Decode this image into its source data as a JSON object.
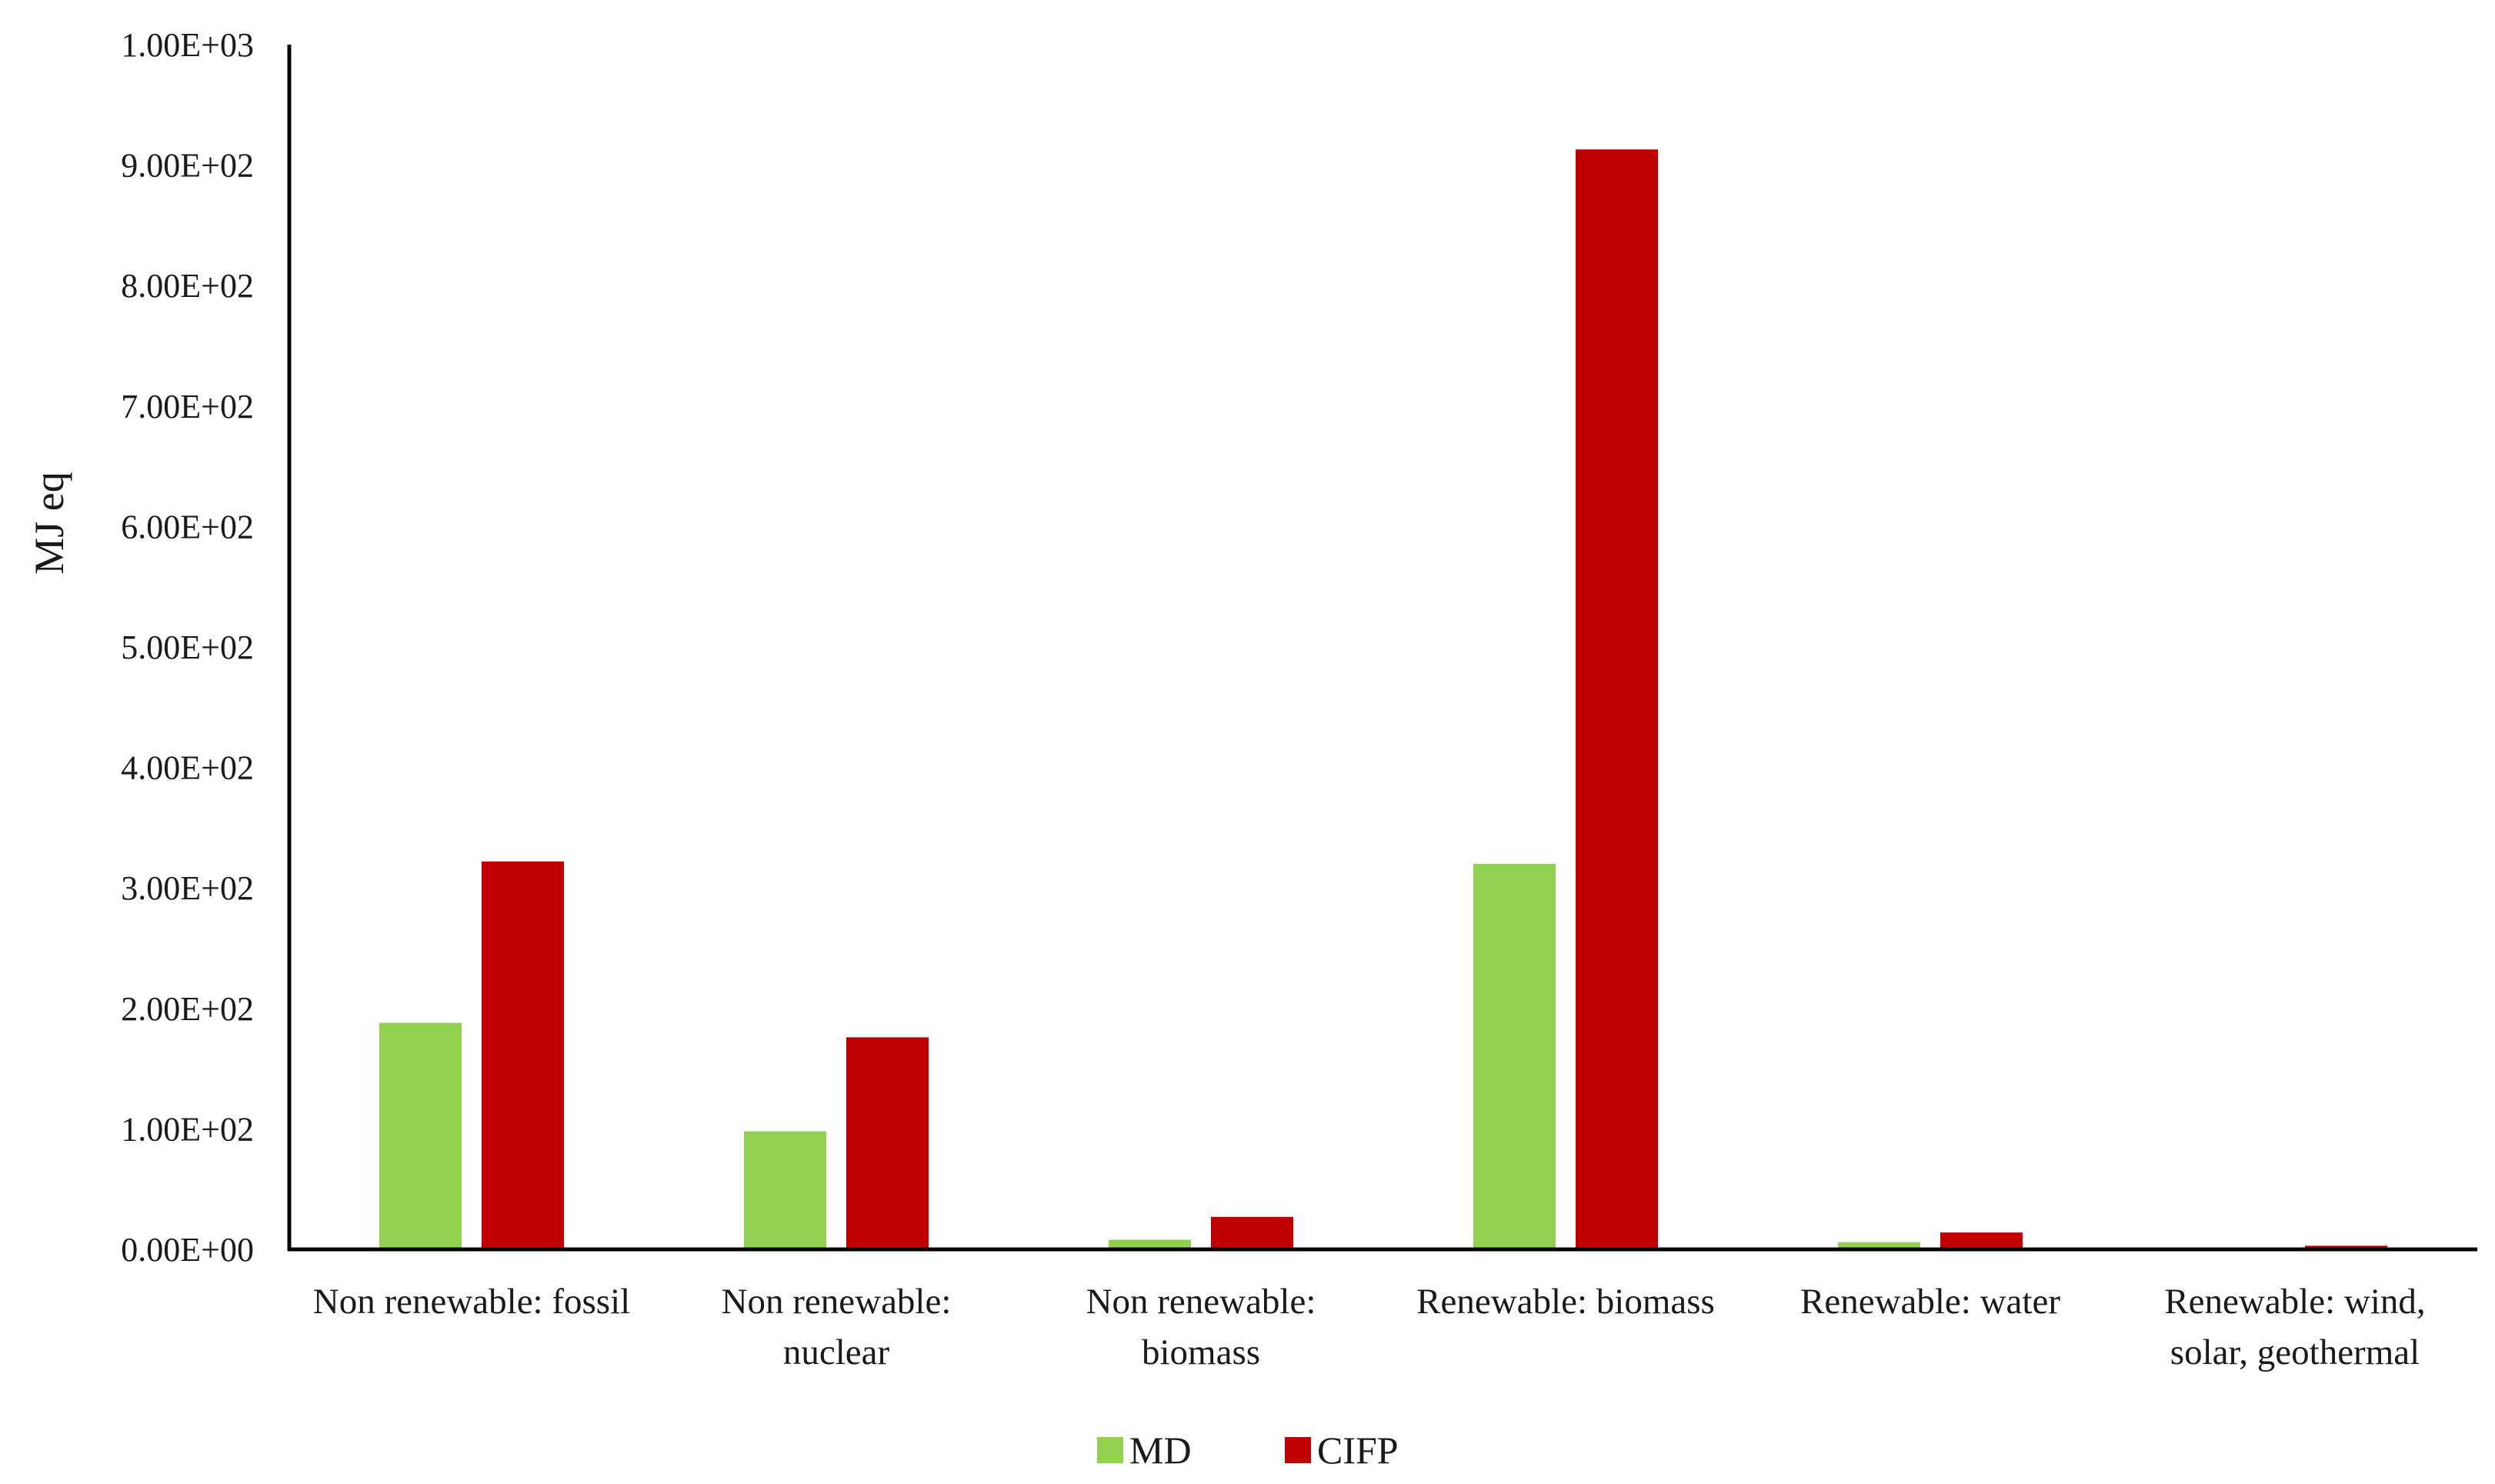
{
  "chart_data": {
    "type": "bar",
    "ylabel": "MJ eq",
    "xlabel": "",
    "ylim": [
      0,
      1000
    ],
    "yticks": [
      {
        "value": 0,
        "label": "0.00E+00"
      },
      {
        "value": 100,
        "label": "1.00E+02"
      },
      {
        "value": 200,
        "label": "2.00E+02"
      },
      {
        "value": 300,
        "label": "3.00E+02"
      },
      {
        "value": 400,
        "label": "4.00E+02"
      },
      {
        "value": 500,
        "label": "5.00E+02"
      },
      {
        "value": 600,
        "label": "6.00E+02"
      },
      {
        "value": 700,
        "label": "7.00E+02"
      },
      {
        "value": 800,
        "label": "8.00E+02"
      },
      {
        "value": 900,
        "label": "9.00E+02"
      },
      {
        "value": 1000,
        "label": "1.00E+03"
      }
    ],
    "categories": [
      [
        "Non renewable: fossil"
      ],
      [
        "Non renewable:",
        "nuclear"
      ],
      [
        "Non renewable:",
        "biomass"
      ],
      [
        "Renewable: biomass"
      ],
      [
        "Renewable: water"
      ],
      [
        "Renewable: wind,",
        "solar, geothermal"
      ]
    ],
    "series": [
      {
        "name": "MD",
        "color": "#92d050",
        "values": [
          188,
          98,
          8,
          320,
          6,
          0
        ]
      },
      {
        "name": "CIFP",
        "color": "#c00000",
        "values": [
          322,
          176,
          27,
          913,
          14,
          3
        ]
      }
    ],
    "grid": false,
    "legend": "bottom-center"
  }
}
